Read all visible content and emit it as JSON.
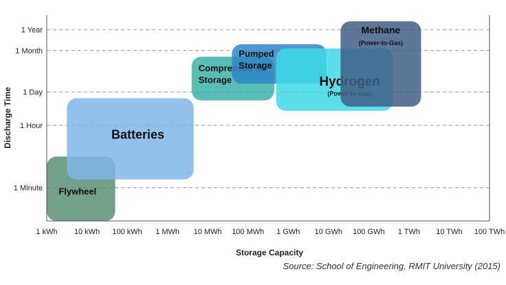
{
  "chart_data": {
    "type": "area",
    "title": "",
    "xlabel": "Storage Capacity",
    "ylabel": "Discharge Time",
    "x_categories": [
      "1 kWh",
      "10 kWh",
      "100 kWh",
      "1 MWh",
      "10 MWh",
      "100 MWh",
      "1 GWh",
      "10 GWh",
      "100 GWh",
      "1 TWh",
      "10 TWh",
      "100 TWh"
    ],
    "y_ticks": [
      {
        "label": "1 Minute",
        "value": 1
      },
      {
        "label": "1 Hour",
        "value": 2.5
      },
      {
        "label": "1 Day",
        "value": 3.3
      },
      {
        "label": "1 Month",
        "value": 4.3
      },
      {
        "label": "1 Year",
        "value": 4.8
      }
    ],
    "ylim": [
      0.2,
      5.15
    ],
    "grid": "horizontal-dashed",
    "regions": [
      {
        "name": "Methane",
        "sub": "(Power-to-Gas)",
        "x": [
          7.3,
          9.3
        ],
        "y": [
          2.95,
          5.0
        ],
        "color": "#3f5f86"
      },
      {
        "name": "Hydrogen",
        "sub": "(Power-to-Gas)",
        "x": [
          5.7,
          8.6
        ],
        "y": [
          2.85,
          4.35
        ],
        "color": "#3ed8e6"
      },
      {
        "name": "Pumped Storage",
        "sub": "",
        "x": [
          4.6,
          6.95
        ],
        "y": [
          3.5,
          4.45
        ],
        "color": "#2f86c4"
      },
      {
        "name": "Compressed air Storage",
        "sub": "",
        "x": [
          3.6,
          5.65
        ],
        "y": [
          3.1,
          4.15
        ],
        "color": "#3bb3a8"
      },
      {
        "name": "Batteries",
        "sub": "",
        "x": [
          0.5,
          3.65
        ],
        "y": [
          1.2,
          3.15
        ],
        "color": "#7fb6ea"
      },
      {
        "name": "Flywheel",
        "sub": "",
        "x": [
          0,
          1.7
        ],
        "y": [
          0.2,
          1.75
        ],
        "color": "#5b8f74"
      }
    ]
  },
  "source": "Source: School of Engineering, RMIT University (2015)"
}
